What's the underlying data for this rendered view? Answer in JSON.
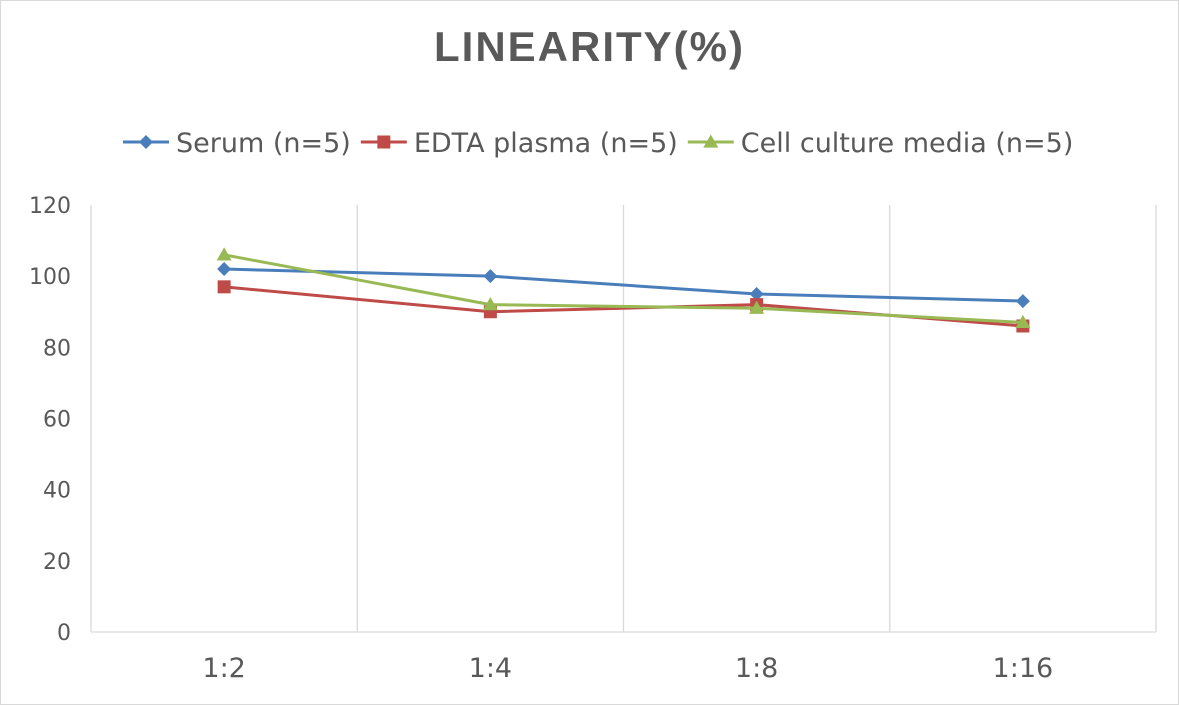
{
  "chart_data": {
    "type": "line",
    "title": "LINEARITY(%)",
    "xlabel": "",
    "ylabel": "",
    "categories": [
      "1:2",
      "1:4",
      "1:8",
      "1:16"
    ],
    "ylim": [
      0,
      120
    ],
    "yticks": [
      0,
      20,
      40,
      60,
      80,
      100,
      120
    ],
    "grid": {
      "vertical": true,
      "horizontal": false
    },
    "legend_position": "top",
    "series": [
      {
        "name": "Serum (n=5)",
        "values": [
          102,
          100,
          95,
          93
        ],
        "color": "#4a7ebb",
        "marker": "diamond"
      },
      {
        "name": "EDTA plasma (n=5)",
        "values": [
          97,
          90,
          92,
          86
        ],
        "color": "#be4b48",
        "marker": "square"
      },
      {
        "name": "Cell culture media (n=5)",
        "values": [
          106,
          92,
          91,
          87
        ],
        "color": "#98b954",
        "marker": "triangle"
      }
    ]
  }
}
